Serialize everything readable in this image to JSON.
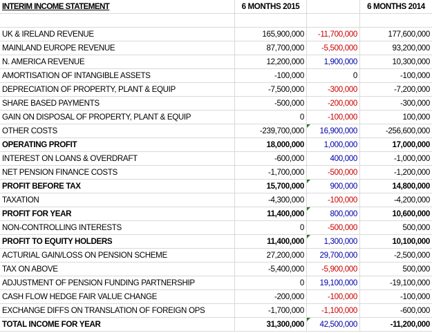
{
  "header": {
    "title": "INTERIM INCOME STATEMENT",
    "col_2015": "6 MONTHS 2015",
    "col_change": "",
    "col_2014": "6 MONTHS 2014"
  },
  "colors": {
    "negative_change": "#cc0000",
    "positive_change": "#0000aa",
    "error_indicator": "#1f7a1f",
    "gridline": "#d9d9d9"
  },
  "rows": [
    {
      "label": "UK & IRELAND REVENUE",
      "y2015": "165,900,000",
      "change": "-11,700,000",
      "y2014": "177,600,000",
      "bold": false,
      "flag": false
    },
    {
      "label": "MAINLAND EUROPE REVENUE",
      "y2015": "87,700,000",
      "change": "-5,500,000",
      "y2014": "93,200,000",
      "bold": false,
      "flag": false
    },
    {
      "label": "N. AMERICA REVENUE",
      "y2015": "12,200,000",
      "change": "1,900,000",
      "y2014": "10,300,000",
      "bold": false,
      "flag": false
    },
    {
      "label": "AMORTISATION OF INTANGIBLE ASSETS",
      "y2015": "-100,000",
      "change": "0",
      "y2014": "-100,000",
      "bold": false,
      "flag": false
    },
    {
      "label": "DEPRECIATION OF PROPERTY, PLANT & EQUIP",
      "y2015": "-7,500,000",
      "change": "-300,000",
      "y2014": "-7,200,000",
      "bold": false,
      "flag": false
    },
    {
      "label": "SHARE BASED PAYMENTS",
      "y2015": "-500,000",
      "change": "-200,000",
      "y2014": "-300,000",
      "bold": false,
      "flag": false
    },
    {
      "label": "GAIN ON DISPOSAL OF PROPERTY, PLANT & EQUIP",
      "y2015": "0",
      "change": "-100,000",
      "y2014": "100,000",
      "bold": false,
      "flag": false
    },
    {
      "label": "OTHER COSTS",
      "y2015": "-239,700,000",
      "change": "16,900,000",
      "y2014": "-256,600,000",
      "bold": false,
      "flag": true
    },
    {
      "label": "OPERATING PROFIT",
      "y2015": "18,000,000",
      "change": "1,000,000",
      "y2014": "17,000,000",
      "bold": true,
      "flag": false
    },
    {
      "label": "INTEREST ON LOANS & OVERDRAFT",
      "y2015": "-600,000",
      "change": "400,000",
      "y2014": "-1,000,000",
      "bold": false,
      "flag": false
    },
    {
      "label": "NET PENSION FINANCE COSTS",
      "y2015": "-1,700,000",
      "change": "-500,000",
      "y2014": "-1,200,000",
      "bold": false,
      "flag": false
    },
    {
      "label": "PROFIT BEFORE TAX",
      "y2015": "15,700,000",
      "change": "900,000",
      "y2014": "14,800,000",
      "bold": true,
      "flag": true
    },
    {
      "label": "TAXATION",
      "y2015": "-4,300,000",
      "change": "-100,000",
      "y2014": "-4,200,000",
      "bold": false,
      "flag": false
    },
    {
      "label": "PROFIT FOR YEAR",
      "y2015": "11,400,000",
      "change": "800,000",
      "y2014": "10,600,000",
      "bold": true,
      "flag": true
    },
    {
      "label": "NON-CONTROLLING INTERESTS",
      "y2015": "0",
      "change": "-500,000",
      "y2014": "500,000",
      "bold": false,
      "flag": false
    },
    {
      "label": "PROFIT TO EQUITY HOLDERS",
      "y2015": "11,400,000",
      "change": "1,300,000",
      "y2014": "10,100,000",
      "bold": true,
      "flag": true
    },
    {
      "label": "ACTURIAL GAIN/LOSS ON PENSION SCHEME",
      "y2015": "27,200,000",
      "change": "29,700,000",
      "y2014": "-2,500,000",
      "bold": false,
      "flag": false
    },
    {
      "label": "TAX ON ABOVE",
      "y2015": "-5,400,000",
      "change": "-5,900,000",
      "y2014": "500,000",
      "bold": false,
      "flag": false
    },
    {
      "label": "ADJUSTMENT OF PENSION FUNDING PARTNERSHIP",
      "y2015": "0",
      "change": "19,100,000",
      "y2014": "-19,100,000",
      "bold": false,
      "flag": false
    },
    {
      "label": "CASH FLOW HEDGE FAIR VALUE CHANGE",
      "y2015": "-200,000",
      "change": "-100,000",
      "y2014": "-100,000",
      "bold": false,
      "flag": false
    },
    {
      "label": "EXCHANGE DIFFS ON TRANSLATION OF FOREIGN OPS",
      "y2015": "-1,700,000",
      "change": "-1,100,000",
      "y2014": "-600,000",
      "bold": false,
      "flag": false
    },
    {
      "label": "TOTAL INCOME FOR YEAR",
      "y2015": "31,300,000",
      "change": "42,500,000",
      "y2014": "-11,200,000",
      "bold": true,
      "flag": true
    }
  ]
}
